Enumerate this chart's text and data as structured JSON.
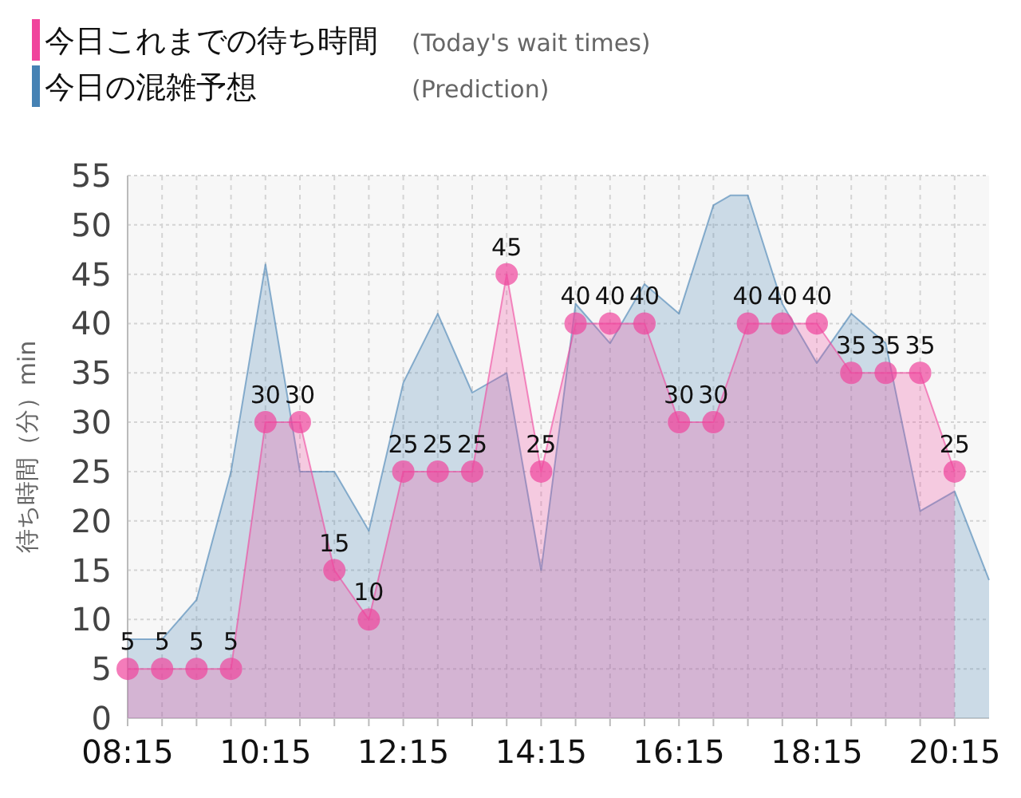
{
  "chart_data": {
    "type": "area",
    "ylabel": "待ち時間（分）min",
    "legend": "top left",
    "grid": true,
    "xlim": [
      8.25,
      20.75
    ],
    "ylim": [
      0,
      55
    ],
    "xticks": [
      {
        "value": 8.25,
        "label": "08:15"
      },
      {
        "value": 8.75,
        "label": null
      },
      {
        "value": 9.25,
        "label": null
      },
      {
        "value": 9.75,
        "label": null
      },
      {
        "value": 10.25,
        "label": "10:15"
      },
      {
        "value": 10.75,
        "label": null
      },
      {
        "value": 11.25,
        "label": null
      },
      {
        "value": 11.75,
        "label": null
      },
      {
        "value": 12.25,
        "label": "12:15"
      },
      {
        "value": 12.75,
        "label": null
      },
      {
        "value": 13.25,
        "label": null
      },
      {
        "value": 13.75,
        "label": null
      },
      {
        "value": 14.25,
        "label": "14:15"
      },
      {
        "value": 14.75,
        "label": null
      },
      {
        "value": 15.25,
        "label": null
      },
      {
        "value": 15.75,
        "label": null
      },
      {
        "value": 16.25,
        "label": "16:15"
      },
      {
        "value": 16.75,
        "label": null
      },
      {
        "value": 17.25,
        "label": null
      },
      {
        "value": 17.75,
        "label": null
      },
      {
        "value": 18.25,
        "label": "18:15"
      },
      {
        "value": 18.75,
        "label": null
      },
      {
        "value": 19.25,
        "label": null
      },
      {
        "value": 19.75,
        "label": null
      },
      {
        "value": 20.25,
        "label": "20:15"
      }
    ],
    "yticks": [
      0,
      5,
      10,
      15,
      20,
      25,
      30,
      35,
      40,
      45,
      50,
      55
    ],
    "series": [
      {
        "name": "今日の混雑予想 (Prediction)",
        "color": "#4682b4",
        "marker": "none",
        "x": [
          8.25,
          8.75,
          9.25,
          9.75,
          10.25,
          10.75,
          11.25,
          11.75,
          12.25,
          12.75,
          13.25,
          13.75,
          14.25,
          14.75,
          15.25,
          15.75,
          16.25,
          16.75,
          17.0,
          17.25,
          17.75,
          18.25,
          18.75,
          19.25,
          19.75,
          20.25,
          20.75
        ],
        "values": [
          8,
          8,
          12,
          25,
          46,
          25,
          25,
          19,
          34,
          41,
          33,
          35,
          15,
          42,
          38,
          44,
          41,
          52,
          53,
          53,
          42,
          36,
          41,
          38,
          21,
          23,
          14
        ]
      },
      {
        "name": "今日これまでの待ち時間 (Today's wait times)",
        "color": "#f0449c",
        "marker": "circle",
        "x": [
          8.25,
          8.75,
          9.25,
          9.75,
          10.25,
          10.75,
          11.25,
          11.75,
          12.25,
          12.75,
          13.25,
          13.75,
          14.25,
          14.75,
          15.25,
          15.75,
          16.25,
          16.75,
          17.25,
          17.75,
          18.25,
          18.75,
          19.25,
          19.75,
          20.25
        ],
        "values": [
          5,
          5,
          5,
          5,
          30,
          30,
          15,
          10,
          25,
          25,
          25,
          45,
          25,
          40,
          40,
          40,
          30,
          30,
          40,
          40,
          40,
          35,
          35,
          35,
          25
        ],
        "value_labels": [
          "5",
          "5",
          "5",
          "5",
          "30",
          "30",
          "15",
          "10",
          "25",
          "25",
          "25",
          "45",
          "25",
          "40",
          "40",
          "40",
          "30",
          "30",
          "40",
          "40",
          "40",
          "35",
          "35",
          "35",
          "25"
        ]
      }
    ]
  }
}
